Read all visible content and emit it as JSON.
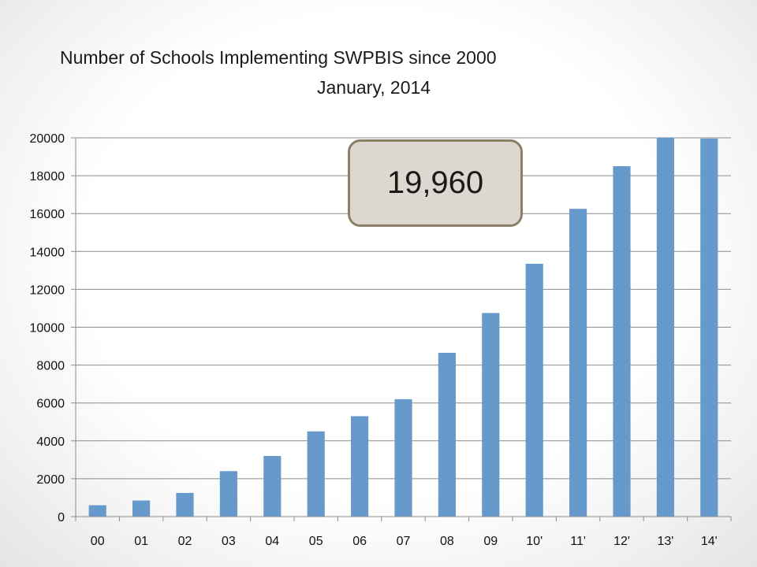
{
  "chart_data": {
    "type": "bar",
    "title": "Number of Schools Implementing SWPBIS since 2000",
    "subtitle": "January, 2014",
    "categories": [
      "00",
      "01",
      "02",
      "03",
      "04",
      "05",
      "06",
      "07",
      "08",
      "09",
      "10'",
      "11'",
      "12'",
      "13'",
      "14'"
    ],
    "values": [
      600,
      850,
      1250,
      2400,
      3200,
      4500,
      5300,
      6200,
      8650,
      10750,
      13350,
      16250,
      18500,
      20000,
      19960
    ],
    "ylim": [
      0,
      20000
    ],
    "yticks": [
      0,
      2000,
      4000,
      6000,
      8000,
      10000,
      12000,
      14000,
      16000,
      18000,
      20000
    ],
    "grid": true,
    "bar_color": "#6699cc",
    "callout": "19,960"
  }
}
